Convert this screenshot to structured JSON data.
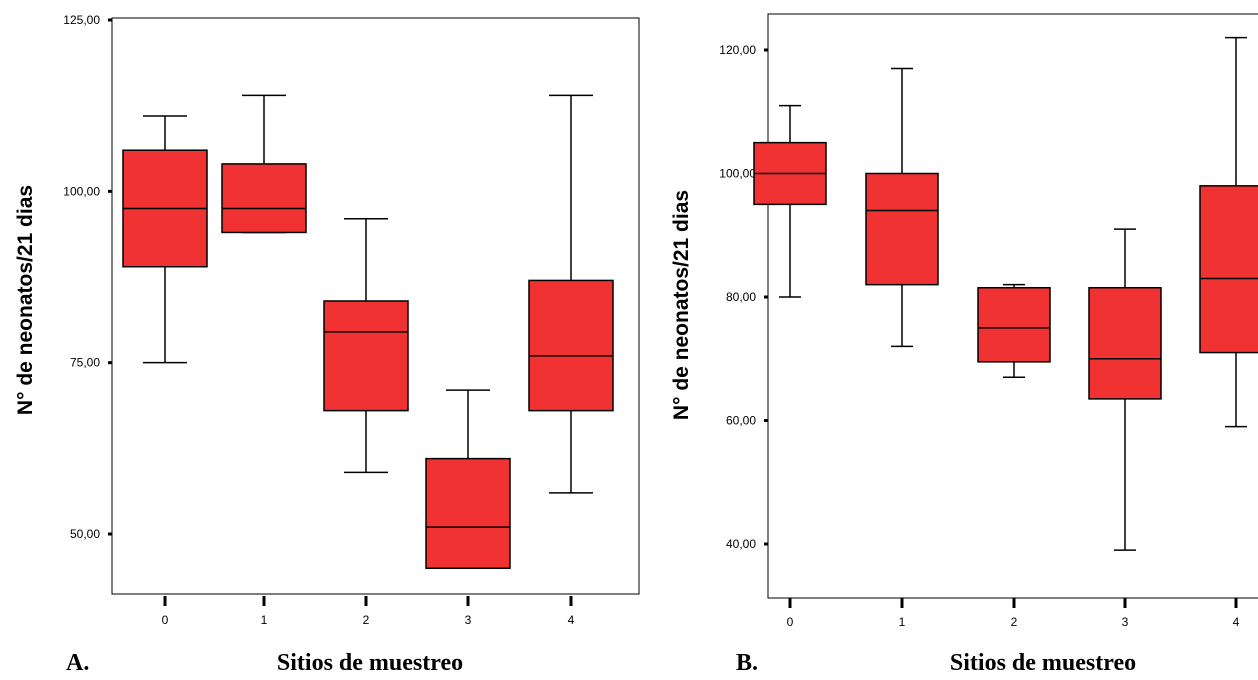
{
  "chart_data": [
    {
      "type": "boxplot",
      "panel_label": "A.",
      "xlabel": "Sitios de muestreo",
      "ylabel": "N° de neonatos/21 dias",
      "y_ticks": [
        "50,00",
        "75,00",
        "100,00",
        "125,00"
      ],
      "categories": [
        "0",
        "1",
        "2",
        "3",
        "4"
      ],
      "box_color": "#f03232",
      "boxes": [
        {
          "category": "0",
          "min": 75,
          "q1": 89,
          "median": 97.5,
          "q3": 106,
          "max": 111
        },
        {
          "category": "1",
          "min": 94,
          "q1": 94,
          "median": 97.5,
          "q3": 104,
          "max": 114
        },
        {
          "category": "2",
          "min": 59,
          "q1": 68,
          "median": 79.5,
          "q3": 84,
          "max": 96
        },
        {
          "category": "3",
          "min": 45,
          "q1": 45,
          "median": 51,
          "q3": 61,
          "max": 71
        },
        {
          "category": "4",
          "min": 56,
          "q1": 68,
          "median": 76,
          "q3": 87,
          "max": 114
        }
      ]
    },
    {
      "type": "boxplot",
      "panel_label": "B.",
      "xlabel": "Sitios de muestreo",
      "ylabel": "N° de neonatos/21 dias",
      "y_ticks": [
        "40,00",
        "60,00",
        "80,00",
        "100,00",
        "120,00"
      ],
      "categories": [
        "0",
        "1",
        "2",
        "3",
        "4"
      ],
      "box_color": "#f03232",
      "boxes": [
        {
          "category": "0",
          "min": 80,
          "q1": 95,
          "median": 100,
          "q3": 105,
          "max": 111
        },
        {
          "category": "1",
          "min": 72,
          "q1": 82,
          "median": 94,
          "q3": 100,
          "max": 117
        },
        {
          "category": "2",
          "min": 67,
          "q1": 69.5,
          "median": 75,
          "q3": 81.5,
          "max": 82
        },
        {
          "category": "3",
          "min": 39,
          "q1": 63.5,
          "median": 70,
          "q3": 81.5,
          "max": 91
        },
        {
          "category": "4",
          "min": 59,
          "q1": 71,
          "median": 83,
          "q3": 98,
          "max": 122
        }
      ]
    }
  ]
}
